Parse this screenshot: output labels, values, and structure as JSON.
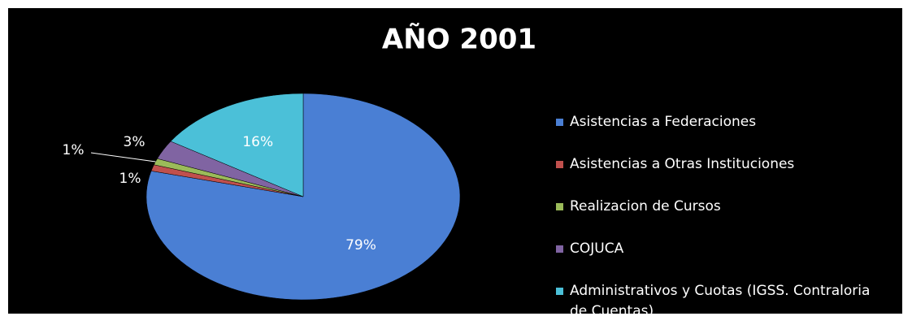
{
  "chart_data": {
    "type": "pie",
    "title": "AÑO 2001",
    "categories": [
      "Asistencias a Federaciones",
      "Asistencias a Otras Instituciones",
      "Realizacion de Cursos",
      "COJUCA",
      "Administrativos y Cuotas (IGSS. Contraloria de Cuentas)"
    ],
    "values": [
      79,
      1,
      1,
      3,
      16
    ],
    "value_labels": [
      "79%",
      "1%",
      "1%",
      "3%",
      "16%"
    ],
    "colors": [
      "#4a7fd4",
      "#c0504d",
      "#9bbb59",
      "#8064a2",
      "#4bc0d8"
    ],
    "legend": "right"
  }
}
